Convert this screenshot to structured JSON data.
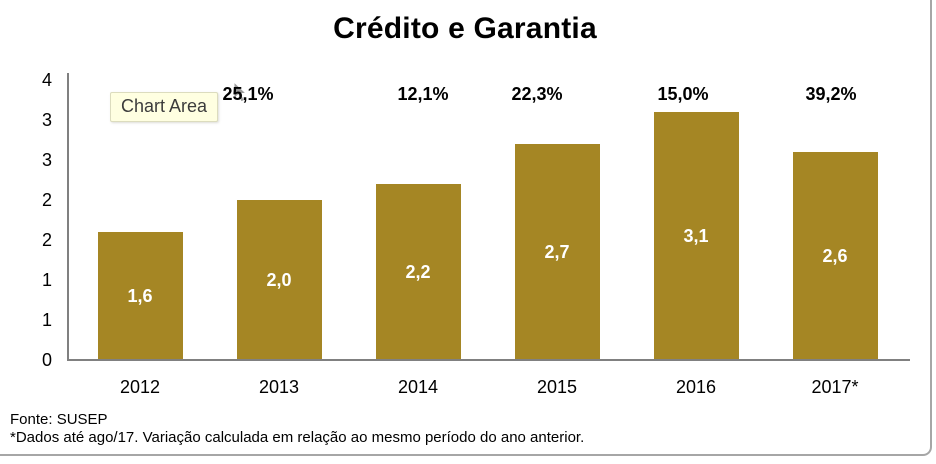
{
  "overlay": {
    "tooltip_label": "Chart Area"
  },
  "chart_data": {
    "type": "bar",
    "title": "Crédito e Garantia",
    "categories": [
      "2012",
      "2013",
      "2014",
      "2015",
      "2016",
      "2017*"
    ],
    "values": [
      1.6,
      2.0,
      2.2,
      2.7,
      3.1,
      2.6
    ],
    "value_labels": [
      "1,6",
      "2,0",
      "2,2",
      "2,7",
      "3,1",
      "2,6"
    ],
    "growth_labels": [
      null,
      "25,1%",
      "12,1%",
      "22,3%",
      "15,0%",
      "39,2%"
    ],
    "ylim": [
      0,
      3.5
    ],
    "y_tick_step": 0.5,
    "y_tick_labels_top_to_bottom": [
      "4",
      "3",
      "3",
      "2",
      "2",
      "1",
      "1",
      "0"
    ],
    "grid": false,
    "legend": false,
    "xlabel": "",
    "ylabel": "",
    "bar_color": "#A58624",
    "value_label_color": "#FFFFFF",
    "axis_color": "#808080",
    "source": "Fonte: SUSEP",
    "footnote": "*Dados até ago/17. Variação calculada em relação ao mesmo período do ano anterior."
  }
}
